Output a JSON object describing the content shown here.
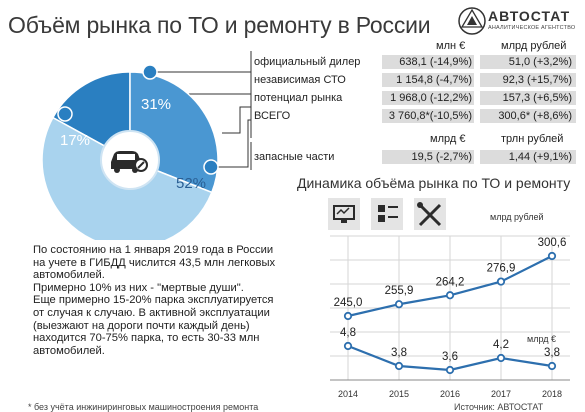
{
  "title": "Объём рынка по ТО и ремонту в России",
  "logo": {
    "brand": "АВТОСТАТ",
    "tagline": "АНАЛИТИЧЕСКОЕ АГЕНТСТВО"
  },
  "table": {
    "col1_header": "млн €",
    "col2_header": "млрд рублей",
    "rows": [
      {
        "label": "официальный дилер",
        "v1": "638,1 (-14,9%)",
        "v2": "51,0 (+3,2%)"
      },
      {
        "label": "независимая СТО",
        "v1": "1 154,8 (-4,7%)",
        "v2": "92,3 (+15,7%)"
      },
      {
        "label": "потенциал рынка",
        "v1": "1 968,0 (-12,2%)",
        "v2": "157,3 (+6,5%)"
      },
      {
        "label": "ВСЕГО",
        "v1": "3 760,8*(-10,5%)",
        "v2": "300,6* (+8,6%)"
      }
    ],
    "parts_col1_header": "млрд €",
    "parts_col2_header": "трлн рублей",
    "parts_row": {
      "label": "запасные части",
      "v1": "19,5 (-2,7%)",
      "v2": "1,44 (+9,1%)"
    }
  },
  "pie": {
    "slices": [
      {
        "label": "17%",
        "value": 17,
        "color": "#2a7fc1"
      },
      {
        "label": "31%",
        "value": 31,
        "color": "#4a97d2"
      },
      {
        "label": "52%",
        "value": 52,
        "color": "#a9d3ee"
      }
    ],
    "center_icon": "car-wrench-icon"
  },
  "chart_data": {
    "type": "line",
    "title": "Динамика объёма рынка по ТО и ремонту",
    "x": [
      2014,
      2015,
      2016,
      2017,
      2018
    ],
    "series": [
      {
        "name": "млрд рублей",
        "values": [
          245.0,
          255.9,
          264.2,
          276.9,
          300.6
        ],
        "labels": [
          "245,0",
          "255,9",
          "264,2",
          "276,9",
          "300,6"
        ]
      },
      {
        "name": "млрд €",
        "values": [
          4.8,
          3.8,
          3.6,
          4.2,
          3.8
        ],
        "labels": [
          "4,8",
          "3,8",
          "3,6",
          "4,2",
          "3,8"
        ]
      }
    ],
    "colors": {
      "line": "#2d6fae",
      "grid": "#d6d6d6"
    },
    "icons": [
      "diagnostic-monitor-icon",
      "parts-checklist-icon",
      "wrench-screwdriver-icon"
    ]
  },
  "text": [
    "По состоянию на 1 января 2019 года в России на учете в ГИБДД числится 43,5 млн легковых автомобилей.",
    "Примерно 10% из них - \"мертвые души\".",
    "Еще примерно 15-20% парка эксплуатируется от случая к случаю. В активной эксплуатации (выезжают на дороги почти каждый день) находится 70-75% парка, то есть 30-33 млн автомобилей."
  ],
  "footer": {
    "note": "* без учёта инжиниринговых машиностроения ремонта",
    "source": "Источник: АВТОСТАТ"
  }
}
